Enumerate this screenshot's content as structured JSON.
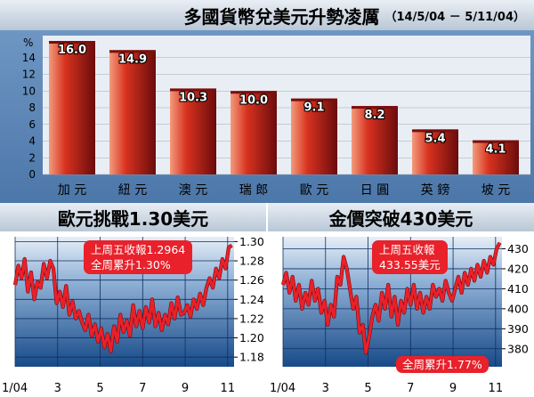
{
  "header": {
    "title": "多國貨幣兌美元升勢凌厲",
    "period": "（14/5/04 － 5/11/04）"
  },
  "chart_data": [
    {
      "type": "bar",
      "title": "多國貨幣兌美元升勢凌厲（14/5/04 － 5/11/04）",
      "ylabel": "%",
      "ylim": [
        0,
        16
      ],
      "yticks": [
        "0",
        "2",
        "4",
        "6",
        "8",
        "10",
        "12",
        "14"
      ],
      "categories": [
        "加 元",
        "紐 元",
        "澳 元",
        "瑞 郎",
        "歐 元",
        "日 圓",
        "英 鎊",
        "坡 元"
      ],
      "values": [
        16.0,
        14.9,
        10.3,
        10.0,
        9.1,
        8.2,
        5.4,
        4.1
      ],
      "value_labels": [
        "16.0",
        "14.9",
        "10.3",
        "10.0",
        "9.1",
        "8.2",
        "5.4",
        "4.1"
      ],
      "colors": {
        "bar_light": "#f08a6e",
        "bar_mid": "#d42a1e",
        "bar_dark": "#6e0d0d",
        "bar_top": "#8a1010",
        "background": "#5d86b6"
      }
    },
    {
      "type": "line",
      "title": "歐元挑戰1.30美元",
      "ylim": [
        1.17,
        1.305
      ],
      "yticks": [
        "1.18",
        "1.20",
        "1.22",
        "1.24",
        "1.26",
        "1.28",
        "1.30"
      ],
      "xticks": [
        "1/04",
        "3",
        "5",
        "7",
        "9",
        "11"
      ],
      "x": [
        "1/04",
        "3",
        "5",
        "7",
        "9",
        "11"
      ],
      "xlim": [
        0,
        10.3
      ],
      "x_values": [
        0,
        2,
        4,
        6,
        8,
        10
      ],
      "series": [
        {
          "x": [
            0,
            0.15,
            0.3,
            0.45,
            0.6,
            0.75,
            0.9,
            1.05,
            1.2,
            1.35,
            1.5,
            1.65,
            1.8,
            1.95,
            2.1,
            2.25,
            2.4,
            2.55,
            2.7,
            2.85,
            3,
            3.15,
            3.3,
            3.45,
            3.6,
            3.75,
            3.9,
            4.05,
            4.2,
            4.35,
            4.5,
            4.65,
            4.8,
            4.95,
            5.1,
            5.25,
            5.4,
            5.55,
            5.7,
            5.85,
            6,
            6.15,
            6.3,
            6.45,
            6.6,
            6.75,
            6.9,
            7.05,
            7.2,
            7.35,
            7.5,
            7.65,
            7.8,
            7.95,
            8.1,
            8.25,
            8.4,
            8.55,
            8.7,
            8.85,
            9,
            9.15,
            9.3,
            9.45,
            9.6,
            9.75,
            9.9,
            10.05,
            10.2
          ],
          "values": [
            1.255,
            1.275,
            1.262,
            1.282,
            1.248,
            1.268,
            1.24,
            1.258,
            1.252,
            1.277,
            1.262,
            1.28,
            1.272,
            1.236,
            1.248,
            1.232,
            1.254,
            1.224,
            1.238,
            1.22,
            1.228,
            1.216,
            1.208,
            1.224,
            1.202,
            1.214,
            1.196,
            1.21,
            1.19,
            1.204,
            1.186,
            1.212,
            1.196,
            1.224,
            1.206,
            1.218,
            1.202,
            1.234,
            1.212,
            1.228,
            1.21,
            1.232,
            1.216,
            1.24,
            1.212,
            1.226,
            1.208,
            1.224,
            1.214,
            1.236,
            1.22,
            1.242,
            1.224,
            1.226,
            1.234,
            1.222,
            1.24,
            1.23,
            1.246,
            1.234,
            1.252,
            1.262,
            1.252,
            1.272,
            1.262,
            1.282,
            1.272,
            1.294,
            1.296
          ]
        }
      ],
      "annotation": [
        "上周五收報1.2964",
        "全周累升1.30%"
      ],
      "colors": {
        "line": "#e8212b",
        "plot_bg_top": "#e6eef7",
        "plot_bg_bottom": "#174a88",
        "grid": "#0e2f63"
      }
    },
    {
      "type": "line",
      "title": "金價突破430美元",
      "ylim": [
        371,
        436
      ],
      "yticks": [
        "380",
        "390",
        "400",
        "410",
        "420",
        "430"
      ],
      "xticks": [
        "1/04",
        "3",
        "5",
        "7",
        "9",
        "11"
      ],
      "x": [
        "1/04",
        "3",
        "5",
        "7",
        "9",
        "11"
      ],
      "xlim": [
        0,
        10.3
      ],
      "x_values": [
        0,
        2,
        4,
        6,
        8,
        10
      ],
      "series": [
        {
          "x": [
            0,
            0.15,
            0.3,
            0.45,
            0.6,
            0.75,
            0.9,
            1.05,
            1.2,
            1.35,
            1.5,
            1.65,
            1.8,
            1.95,
            2.1,
            2.25,
            2.4,
            2.55,
            2.7,
            2.85,
            3,
            3.15,
            3.3,
            3.45,
            3.6,
            3.75,
            3.9,
            4.05,
            4.2,
            4.35,
            4.5,
            4.65,
            4.8,
            4.95,
            5.1,
            5.25,
            5.4,
            5.55,
            5.7,
            5.85,
            6,
            6.15,
            6.3,
            6.45,
            6.6,
            6.75,
            6.9,
            7.05,
            7.2,
            7.35,
            7.5,
            7.65,
            7.8,
            7.95,
            8.1,
            8.25,
            8.4,
            8.55,
            8.7,
            8.85,
            9,
            9.15,
            9.3,
            9.45,
            9.6,
            9.75,
            9.9,
            10.05,
            10.2
          ],
          "values": [
            412,
            418,
            408,
            416,
            404,
            412,
            400,
            408,
            402,
            414,
            404,
            410,
            398,
            404,
            392,
            402,
            396,
            416,
            412,
            426,
            420,
            410,
            400,
            406,
            388,
            392,
            378,
            386,
            396,
            402,
            394,
            408,
            400,
            412,
            396,
            406,
            392,
            404,
            398,
            410,
            402,
            412,
            400,
            408,
            398,
            406,
            400,
            412,
            406,
            410,
            404,
            414,
            408,
            404,
            410,
            416,
            408,
            418,
            412,
            420,
            414,
            422,
            416,
            424,
            418,
            426,
            422,
            430,
            433
          ]
        }
      ],
      "annotation": [
        "上周五收報",
        "433.55美元"
      ],
      "annotation2": "全周累升1.77%",
      "colors": {
        "line": "#e8212b",
        "plot_bg_top": "#e6eef7",
        "plot_bg_bottom": "#174a88",
        "grid": "#0e2f63"
      }
    }
  ]
}
